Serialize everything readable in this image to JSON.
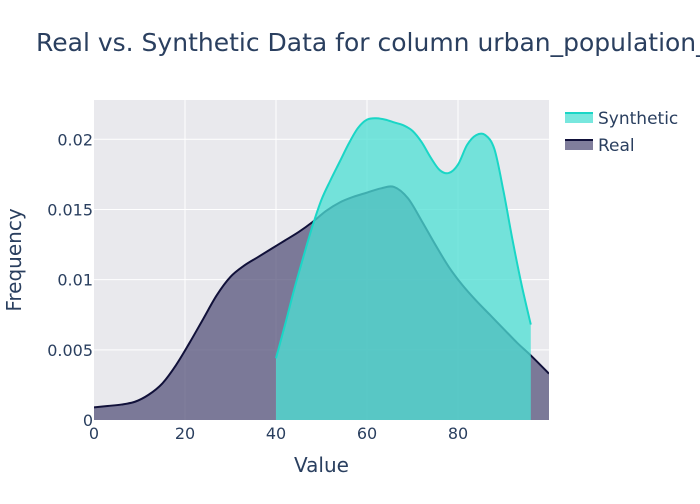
{
  "chart_data": {
    "type": "area",
    "title": "Real vs. Synthetic Data for column urban_population_",
    "xlabel": "Value",
    "ylabel": "Frequency",
    "xlim": [
      0,
      100
    ],
    "ylim": [
      0,
      0.0228
    ],
    "grid": true,
    "x_ticks": [
      0,
      20,
      40,
      60,
      80
    ],
    "x_tick_labels": [
      "0",
      "20",
      "40",
      "60",
      "80"
    ],
    "y_ticks": [
      0,
      0.005,
      0.01,
      0.015,
      0.02
    ],
    "y_tick_labels": [
      "0",
      "0.005",
      "0.01",
      "0.015",
      "0.02"
    ],
    "legend": {
      "placement": "top-right",
      "order": [
        "Synthetic",
        "Real"
      ]
    },
    "series": [
      {
        "name": "Real",
        "fill_color": "#5c5a80",
        "fill_opacity": 0.78,
        "line_color": "#11113a",
        "x": [
          0,
          3,
          6,
          9,
          12,
          15,
          18,
          21,
          24,
          27,
          30,
          33,
          36,
          39,
          42,
          45,
          48,
          51,
          54,
          57,
          60,
          63,
          66,
          69,
          72,
          75,
          78,
          81,
          84,
          87,
          90,
          93,
          96,
          100
        ],
        "y": [
          0.0009,
          0.001,
          0.0011,
          0.0013,
          0.0018,
          0.0026,
          0.0039,
          0.0055,
          0.0072,
          0.0089,
          0.0102,
          0.011,
          0.0116,
          0.0122,
          0.0128,
          0.0134,
          0.0141,
          0.0149,
          0.0155,
          0.0159,
          0.0162,
          0.0165,
          0.0166,
          0.0158,
          0.0142,
          0.0125,
          0.0109,
          0.0096,
          0.0085,
          0.0075,
          0.0065,
          0.0055,
          0.0046,
          0.0033
        ]
      },
      {
        "name": "Synthetic",
        "fill_color": "#4ee0d3",
        "fill_opacity": 0.76,
        "line_color": "#1ad6c6",
        "x": [
          40,
          42,
          44,
          46,
          48,
          50,
          52,
          54,
          56,
          58,
          60,
          62,
          64,
          66,
          68,
          70,
          72,
          74,
          76,
          78,
          80,
          82,
          84,
          86,
          88,
          90,
          92,
          94,
          96
        ],
        "y": [
          0.0044,
          0.0068,
          0.0093,
          0.0116,
          0.0138,
          0.0157,
          0.0171,
          0.0184,
          0.0197,
          0.0208,
          0.0214,
          0.0215,
          0.0214,
          0.0212,
          0.021,
          0.0206,
          0.0198,
          0.0187,
          0.0178,
          0.0176,
          0.0182,
          0.0196,
          0.0203,
          0.0203,
          0.0193,
          0.0163,
          0.0128,
          0.0096,
          0.0068
        ]
      }
    ]
  }
}
